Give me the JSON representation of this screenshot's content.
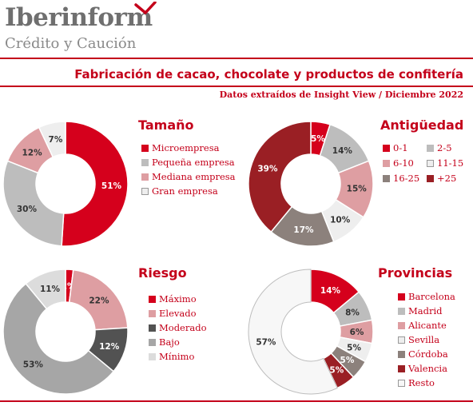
{
  "brand": {
    "name": "Iberinform",
    "tagline": "Crédito y Caución"
  },
  "title": "Fabricación de cacao, chocolate y productos de confitería",
  "subtitle": "Datos extraídos de Insight View / Diciembre  2022",
  "colors": {
    "accent": "#c4001a"
  },
  "chart_data": [
    {
      "type": "pie",
      "title": "Tamaño",
      "categories": [
        "Microempresa",
        "Pequeña empresa",
        "Mediana empresa",
        "Gran empresa"
      ],
      "values": [
        51,
        30,
        12,
        7
      ],
      "labels": [
        "51%",
        "30%",
        "12%",
        "7%"
      ],
      "colors": [
        "#d5001c",
        "#bdbdbd",
        "#de9ea2",
        "#eeeeee"
      ],
      "legend_position": "right"
    },
    {
      "type": "pie",
      "title": "Antigüedad",
      "categories": [
        "0-1",
        "2-5",
        "6-10",
        "11-15",
        "16-25",
        "+25"
      ],
      "values": [
        5,
        14,
        15,
        10,
        17,
        39
      ],
      "labels": [
        "5%",
        "14%",
        "15%",
        "10%",
        "17%",
        "39%"
      ],
      "colors": [
        "#d5001c",
        "#bdbdbd",
        "#de9ea2",
        "#eeeeee",
        "#8c817c",
        "#9a1f24"
      ],
      "legend_position": "right"
    },
    {
      "type": "pie",
      "title": "Riesgo",
      "categories": [
        "Máximo",
        "Elevado",
        "Moderado",
        "Bajo",
        "Mínimo"
      ],
      "values": [
        2,
        22,
        12,
        53,
        11
      ],
      "labels": [
        "2%",
        "22%",
        "12%",
        "53%",
        "11%"
      ],
      "colors": [
        "#d5001c",
        "#de9ea2",
        "#525252",
        "#a6a6a6",
        "#dcdcdc"
      ],
      "legend_position": "right"
    },
    {
      "type": "pie",
      "title": "Provincias",
      "categories": [
        "Barcelona",
        "Madrid",
        "Alicante",
        "Sevilla",
        "Córdoba",
        "Valencia",
        "Resto"
      ],
      "values": [
        14,
        8,
        6,
        5,
        5,
        5,
        57
      ],
      "labels": [
        "14%",
        "8%",
        "6%",
        "5%",
        "5%",
        "5%",
        "57%"
      ],
      "colors": [
        "#d5001c",
        "#bdbdbd",
        "#de9ea2",
        "#eeeeee",
        "#8c817c",
        "#9a1f24",
        "#f7f7f7"
      ],
      "legend_position": "right"
    }
  ]
}
